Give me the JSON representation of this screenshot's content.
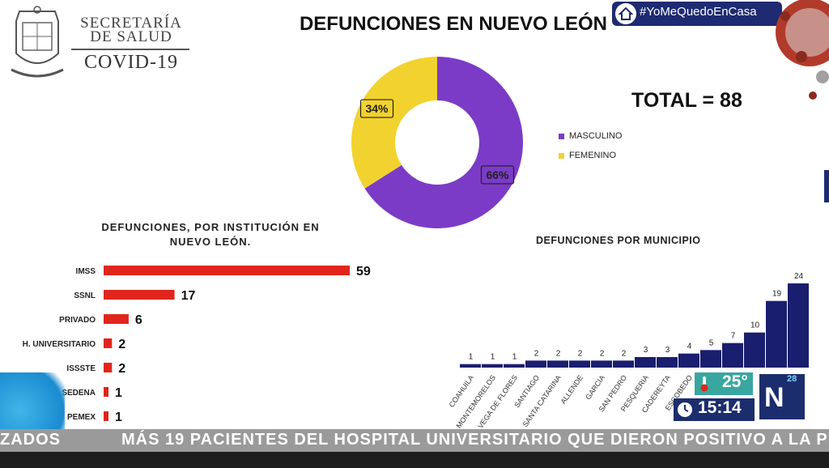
{
  "header": {
    "secretaria_line1": "SECRETARÍA",
    "secretaria_line2": "DE SALUD",
    "covid": "COVID-19",
    "title": "DEFUNCIONES EN NUEVO LEÓN",
    "hashtag": "#YoMeQuedoEnCasa",
    "total": "TOTAL = 88"
  },
  "colors": {
    "masculino": "#7b3bc6",
    "femenino": "#f2d22e",
    "institution_bar": "#e0261c",
    "municipio_bar": "#1a1e6e"
  },
  "overlay": {
    "temperature": "25°",
    "time": "15:14",
    "logo": "N",
    "logo_channel": "28"
  },
  "ticker": {
    "left": "ZADOS",
    "main": "MÁS 19 PACIENTES DEL HOSPITAL UNIVERSITARIO QUE DIERON POSITIVO A LA P"
  },
  "chart_data": [
    {
      "type": "pie",
      "title": "",
      "categories": [
        "MASCULINO",
        "FEMENINO"
      ],
      "values": [
        66,
        34
      ],
      "labels": [
        "66%",
        "34%"
      ],
      "colors": [
        "#7b3bc6",
        "#f2d22e"
      ],
      "legend": "right",
      "donut": true
    },
    {
      "type": "bar",
      "orientation": "horizontal",
      "title_line1": "DEFUNCIONES, POR INSTITUCIÓN EN",
      "title_line2": "NUEVO LEÓN.",
      "categories": [
        "IMSS",
        "SSNL",
        "PRIVADO",
        "H. UNIVERSITARIO",
        "ISSSTE",
        "SEDENA",
        "PEMEX"
      ],
      "values": [
        59,
        17,
        6,
        2,
        2,
        1,
        1
      ],
      "color": "#e0261c",
      "grid": false
    },
    {
      "type": "bar",
      "title": "DEFUNCIONES POR MUNICIPIO",
      "categories": [
        "COAHUILA",
        "MONTEMORELOS",
        "VEGA DE FLORES",
        "SANTIAGO",
        "SANTA CATARINA",
        "ALLENDE",
        "GARCIA",
        "SAN PEDRO",
        "PESQUERIA",
        "CADEREYTA",
        "ESCOBEDO",
        "",
        "",
        "",
        "",
        ""
      ],
      "values": [
        1,
        1,
        1,
        2,
        2,
        2,
        2,
        2,
        3,
        3,
        4,
        5,
        7,
        10,
        19,
        24
      ],
      "color": "#1a1e6e",
      "grid": false
    }
  ]
}
